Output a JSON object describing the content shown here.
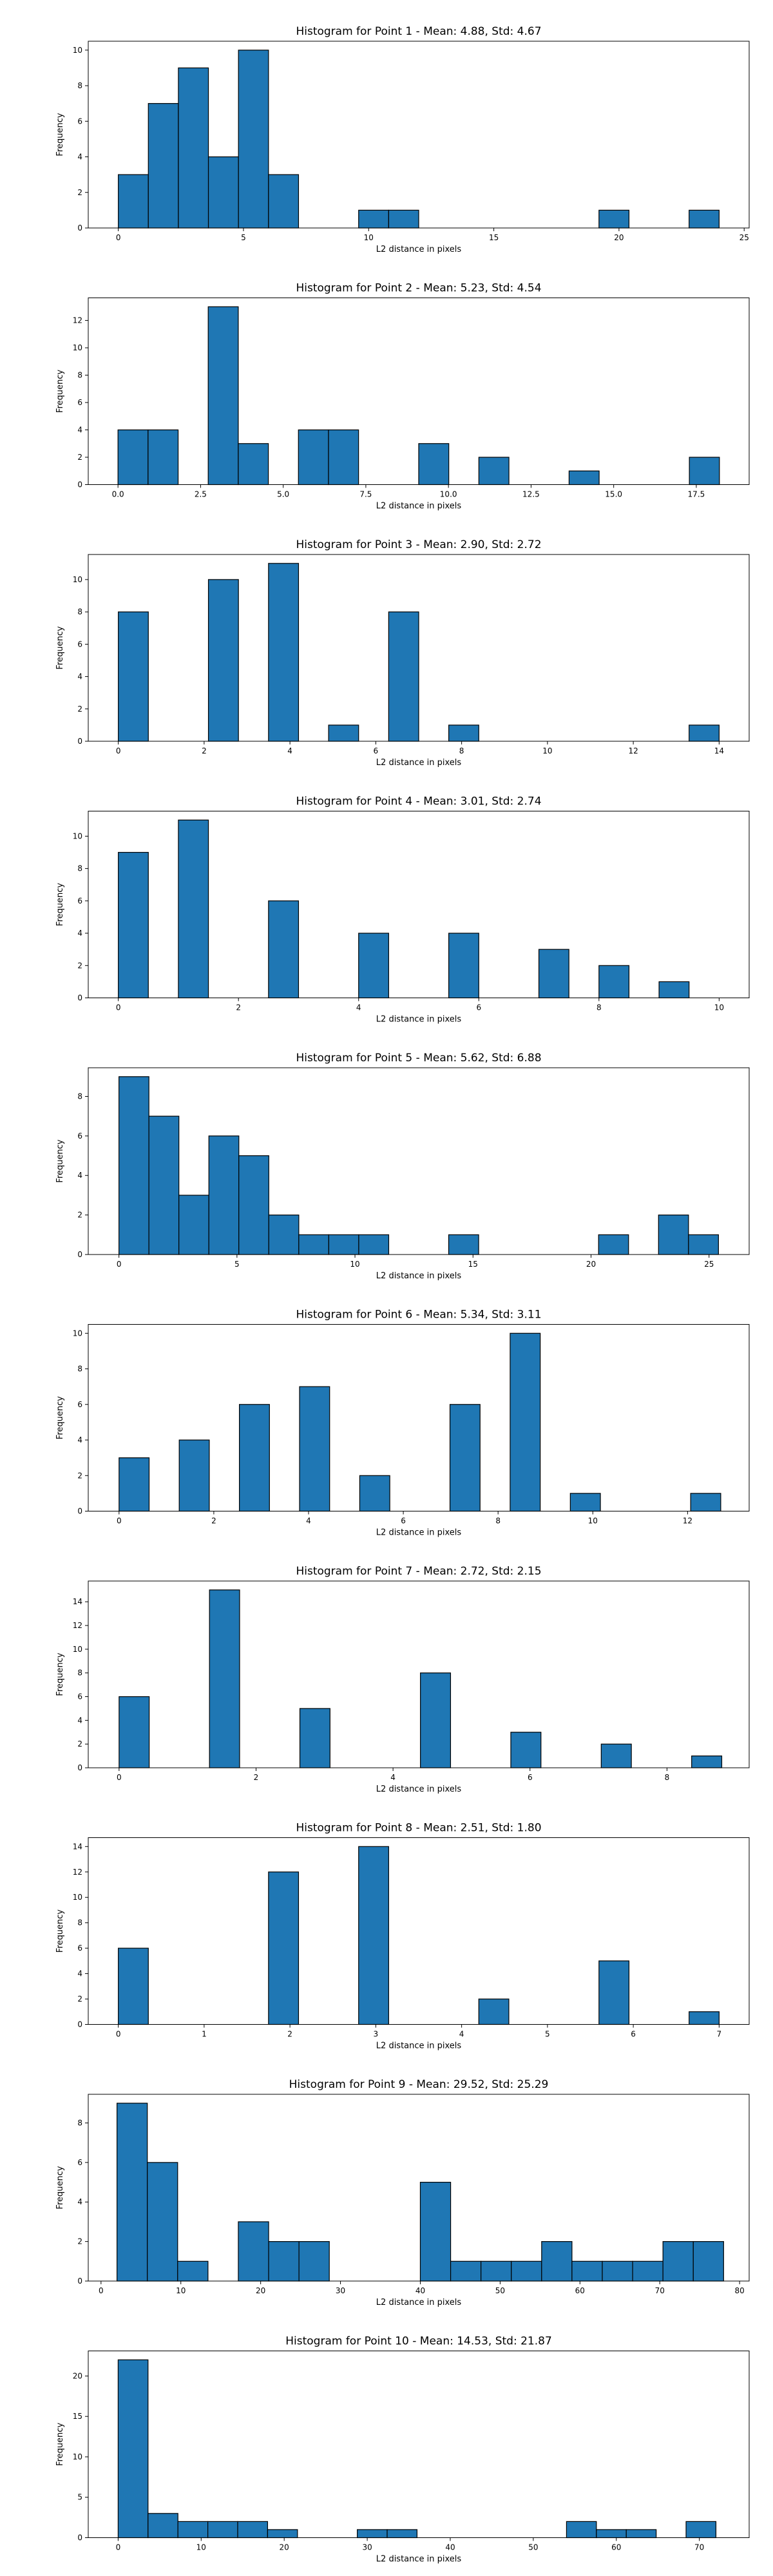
{
  "colors": {
    "bar_fill": "#1f77b4",
    "bar_edge": "#000000",
    "axis": "#000000",
    "background": "#ffffff"
  },
  "chart_data": [
    {
      "type": "bar",
      "title": "Histogram for Point 1 - Mean: 4.88, Std: 4.67",
      "xlabel": "L2 distance in pixels",
      "ylabel": "Frequency",
      "grid": false,
      "xlim": [
        -1.2,
        25.2
      ],
      "ylim": [
        0,
        10.5
      ],
      "xticks": [
        0,
        5,
        10,
        15,
        20,
        25
      ],
      "yticks": [
        0,
        2,
        4,
        6,
        8,
        10
      ],
      "bin_start": 0.0,
      "bin_width": 1.2,
      "counts": [
        3,
        7,
        9,
        4,
        10,
        3,
        0,
        0,
        1,
        1,
        0,
        0,
        0,
        0,
        0,
        0,
        1,
        0,
        0,
        1
      ]
    },
    {
      "type": "bar",
      "title": "Histogram for Point 2 - Mean: 5.23, Std: 4.54",
      "xlabel": "L2 distance in pixels",
      "ylabel": "Frequency",
      "grid": false,
      "xlim": [
        -0.9,
        19.1
      ],
      "ylim": [
        0,
        13.65
      ],
      "xticks": [
        0.0,
        2.5,
        5.0,
        7.5,
        10.0,
        12.5,
        15.0,
        17.5
      ],
      "xtick_decimals": 1,
      "yticks": [
        0,
        2,
        4,
        6,
        8,
        10,
        12
      ],
      "bin_start": 0.0,
      "bin_width": 0.91,
      "counts": [
        4,
        4,
        0,
        13,
        3,
        0,
        4,
        4,
        0,
        0,
        3,
        0,
        2,
        0,
        0,
        1,
        0,
        0,
        0,
        2
      ]
    },
    {
      "type": "bar",
      "title": "Histogram for Point 3 - Mean: 2.90, Std: 2.72",
      "xlabel": "L2 distance in pixels",
      "ylabel": "Frequency",
      "grid": false,
      "xlim": [
        -0.7,
        14.7
      ],
      "ylim": [
        0,
        11.55
      ],
      "xticks": [
        0,
        2,
        4,
        6,
        8,
        10,
        12,
        14
      ],
      "yticks": [
        0,
        2,
        4,
        6,
        8,
        10
      ],
      "bin_start": 0.0,
      "bin_width": 0.7,
      "counts": [
        8,
        0,
        0,
        10,
        0,
        11,
        0,
        1,
        0,
        8,
        0,
        1,
        0,
        0,
        0,
        0,
        0,
        0,
        0,
        1
      ]
    },
    {
      "type": "bar",
      "title": "Histogram for Point 4 - Mean: 3.01, Std: 2.74",
      "xlabel": "L2 distance in pixels",
      "ylabel": "Frequency",
      "grid": false,
      "xlim": [
        -0.5,
        10.5
      ],
      "ylim": [
        0,
        11.55
      ],
      "xticks": [
        0,
        2,
        4,
        6,
        8,
        10
      ],
      "yticks": [
        0,
        2,
        4,
        6,
        8,
        10
      ],
      "bin_start": 0.0,
      "bin_width": 0.5,
      "counts": [
        9,
        0,
        11,
        0,
        0,
        6,
        0,
        0,
        4,
        0,
        0,
        4,
        0,
        0,
        3,
        0,
        2,
        0,
        1,
        0
      ]
    },
    {
      "type": "bar",
      "title": "Histogram for Point 5 - Mean: 5.62, Std: 6.88",
      "xlabel": "L2 distance in pixels",
      "ylabel": "Frequency",
      "grid": false,
      "xlim": [
        -1.3,
        26.7
      ],
      "ylim": [
        0,
        9.45
      ],
      "xticks": [
        0,
        5,
        10,
        15,
        20,
        25
      ],
      "yticks": [
        0,
        2,
        4,
        6,
        8
      ],
      "bin_start": 0.0,
      "bin_width": 1.27,
      "counts": [
        9,
        7,
        3,
        6,
        5,
        2,
        1,
        1,
        1,
        0,
        0,
        1,
        0,
        0,
        0,
        0,
        1,
        0,
        2,
        1
      ]
    },
    {
      "type": "bar",
      "title": "Histogram for Point 6 - Mean: 5.34, Std: 3.11",
      "xlabel": "L2 distance in pixels",
      "ylabel": "Frequency",
      "grid": false,
      "xlim": [
        -0.65,
        13.3
      ],
      "ylim": [
        0,
        10.5
      ],
      "xticks": [
        0,
        2,
        4,
        6,
        8,
        10,
        12
      ],
      "yticks": [
        0,
        2,
        4,
        6,
        8,
        10
      ],
      "bin_start": 0.0,
      "bin_width": 0.635,
      "counts": [
        3,
        0,
        4,
        0,
        6,
        0,
        7,
        0,
        2,
        0,
        0,
        6,
        0,
        10,
        0,
        1,
        0,
        0,
        0,
        1
      ]
    },
    {
      "type": "bar",
      "title": "Histogram for Point 7 - Mean: 2.72, Std: 2.15",
      "xlabel": "L2 distance in pixels",
      "ylabel": "Frequency",
      "grid": false,
      "xlim": [
        -0.45,
        9.2
      ],
      "ylim": [
        0,
        15.75
      ],
      "xticks": [
        0,
        2,
        4,
        6,
        8
      ],
      "yticks": [
        0,
        2,
        4,
        6,
        8,
        10,
        12,
        14
      ],
      "bin_start": 0.0,
      "bin_width": 0.44,
      "counts": [
        6,
        0,
        0,
        15,
        0,
        0,
        5,
        0,
        0,
        0,
        8,
        0,
        0,
        3,
        0,
        0,
        2,
        0,
        0,
        1
      ]
    },
    {
      "type": "bar",
      "title": "Histogram for Point 8 - Mean: 2.51, Std: 1.80",
      "xlabel": "L2 distance in pixels",
      "ylabel": "Frequency",
      "grid": false,
      "xlim": [
        -0.35,
        7.35
      ],
      "ylim": [
        0,
        14.7
      ],
      "xticks": [
        0,
        1,
        2,
        3,
        4,
        5,
        6,
        7
      ],
      "yticks": [
        0,
        2,
        4,
        6,
        8,
        10,
        12,
        14
      ],
      "bin_start": 0.0,
      "bin_width": 0.35,
      "counts": [
        6,
        0,
        0,
        0,
        0,
        12,
        0,
        0,
        14,
        0,
        0,
        0,
        2,
        0,
        0,
        0,
        5,
        0,
        0,
        1
      ]
    },
    {
      "type": "bar",
      "title": "Histogram for Point 9 - Mean: 29.52, Std: 25.29",
      "xlabel": "L2 distance in pixels",
      "ylabel": "Frequency",
      "grid": false,
      "xlim": [
        -1.6,
        81.2
      ],
      "ylim": [
        0,
        9.45
      ],
      "xticks": [
        0,
        10,
        20,
        30,
        40,
        50,
        60,
        70,
        80
      ],
      "yticks": [
        0,
        2,
        4,
        6,
        8
      ],
      "bin_start": 2.0,
      "bin_width": 3.8,
      "counts": [
        9,
        6,
        1,
        0,
        3,
        2,
        2,
        0,
        0,
        0,
        5,
        1,
        1,
        1,
        2,
        1,
        1,
        1,
        2,
        2
      ]
    },
    {
      "type": "bar",
      "title": "Histogram for Point 10 - Mean: 14.53, Std: 21.87",
      "xlabel": "L2 distance in pixels",
      "ylabel": "Frequency",
      "grid": false,
      "xlim": [
        -3.6,
        76.0
      ],
      "ylim": [
        0,
        23.1
      ],
      "xticks": [
        0,
        10,
        20,
        30,
        40,
        50,
        60,
        70
      ],
      "yticks": [
        0,
        5,
        10,
        15,
        20
      ],
      "bin_start": 0.0,
      "bin_width": 3.6,
      "counts": [
        22,
        3,
        2,
        2,
        2,
        1,
        0,
        0,
        1,
        1,
        0,
        0,
        0,
        0,
        0,
        2,
        1,
        1,
        0,
        2
      ]
    }
  ]
}
